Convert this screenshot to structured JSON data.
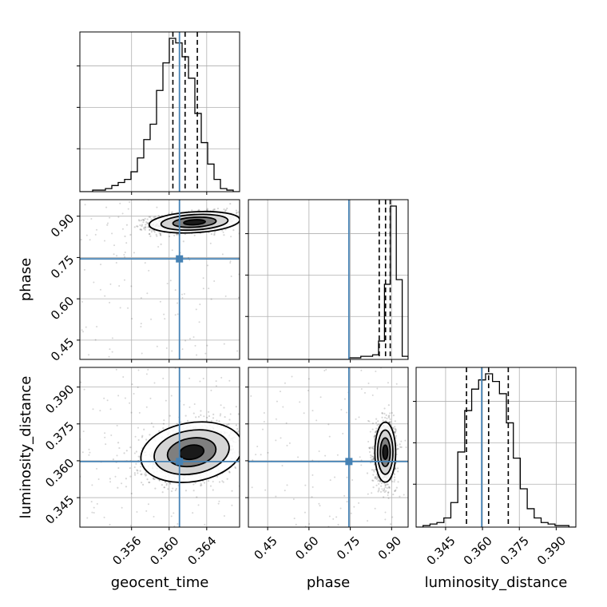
{
  "chart_data": {
    "type": "corner",
    "parameters": [
      "geocent_time",
      "phase",
      "luminosity_distance"
    ],
    "colors": {
      "hist": "#000000",
      "truth": "#4682b4",
      "grid": "#b0b0b0",
      "samples": "#000000"
    },
    "grid": true,
    "ranges": {
      "geocent_time": [
        0.3505,
        0.3675
      ],
      "phase": [
        0.38,
        0.96
      ],
      "luminosity_distance": [
        0.333,
        0.398
      ]
    },
    "ticks": {
      "geocent_time": [
        0.356,
        0.36,
        0.364
      ],
      "phase": [
        0.45,
        0.6,
        0.75,
        0.9
      ],
      "luminosity_distance": [
        0.345,
        0.36,
        0.375,
        0.39
      ]
    },
    "tick_labels": {
      "geocent_time": [
        "0.356",
        "0.360",
        "0.364"
      ],
      "phase": [
        "0.45",
        "0.60",
        "0.75",
        "0.90"
      ],
      "luminosity_distance": [
        "0.345",
        "0.360",
        "0.375",
        "0.390"
      ]
    },
    "truths": {
      "geocent_time": 0.3611,
      "phase": 0.745,
      "luminosity_distance": 0.3597
    },
    "quantiles": {
      "geocent_time": [
        0.3604,
        0.3617,
        0.363
      ],
      "phase": [
        0.855,
        0.878,
        0.895
      ],
      "luminosity_distance": [
        0.3535,
        0.3625,
        0.3705
      ]
    },
    "marginals": {
      "geocent_time": {
        "edges_range": [
          0.3505,
          0.3675
        ],
        "counts": [
          0,
          0,
          1,
          1,
          2,
          4,
          6,
          8,
          13,
          22,
          34,
          44,
          66,
          84,
          100,
          97,
          88,
          74,
          51,
          32,
          18,
          8,
          2,
          1,
          0
        ]
      },
      "phase": {
        "edges_range": [
          0.38,
          0.96
        ],
        "counts": [
          0,
          0,
          0,
          0,
          0,
          0,
          0,
          0,
          0,
          0,
          0,
          0,
          0,
          0,
          0,
          0,
          0,
          1,
          1,
          2,
          2,
          3,
          12,
          49,
          100,
          52,
          2
        ]
      },
      "luminosity_distance": {
        "edges_range": [
          0.333,
          0.398
        ],
        "counts": [
          0,
          1,
          2,
          3,
          6,
          16,
          49,
          76,
          90,
          96,
          100,
          95,
          87,
          68,
          45,
          25,
          12,
          6,
          3,
          2,
          1,
          1,
          0
        ]
      }
    },
    "joint": [
      {
        "x": "geocent_time",
        "y": "phase",
        "center": [
          0.3627,
          0.878
        ],
        "sigma": [
          0.0023,
          0.018
        ],
        "rho": 0.25
      },
      {
        "x": "geocent_time",
        "y": "luminosity_distance",
        "center": [
          0.3624,
          0.3635
        ],
        "sigma": [
          0.0026,
          0.0057
        ],
        "rho": 0.3
      },
      {
        "x": "phase",
        "y": "luminosity_distance",
        "center": [
          0.877,
          0.3635
        ],
        "sigma": [
          0.018,
          0.0058
        ],
        "rho": 0.0
      }
    ]
  }
}
